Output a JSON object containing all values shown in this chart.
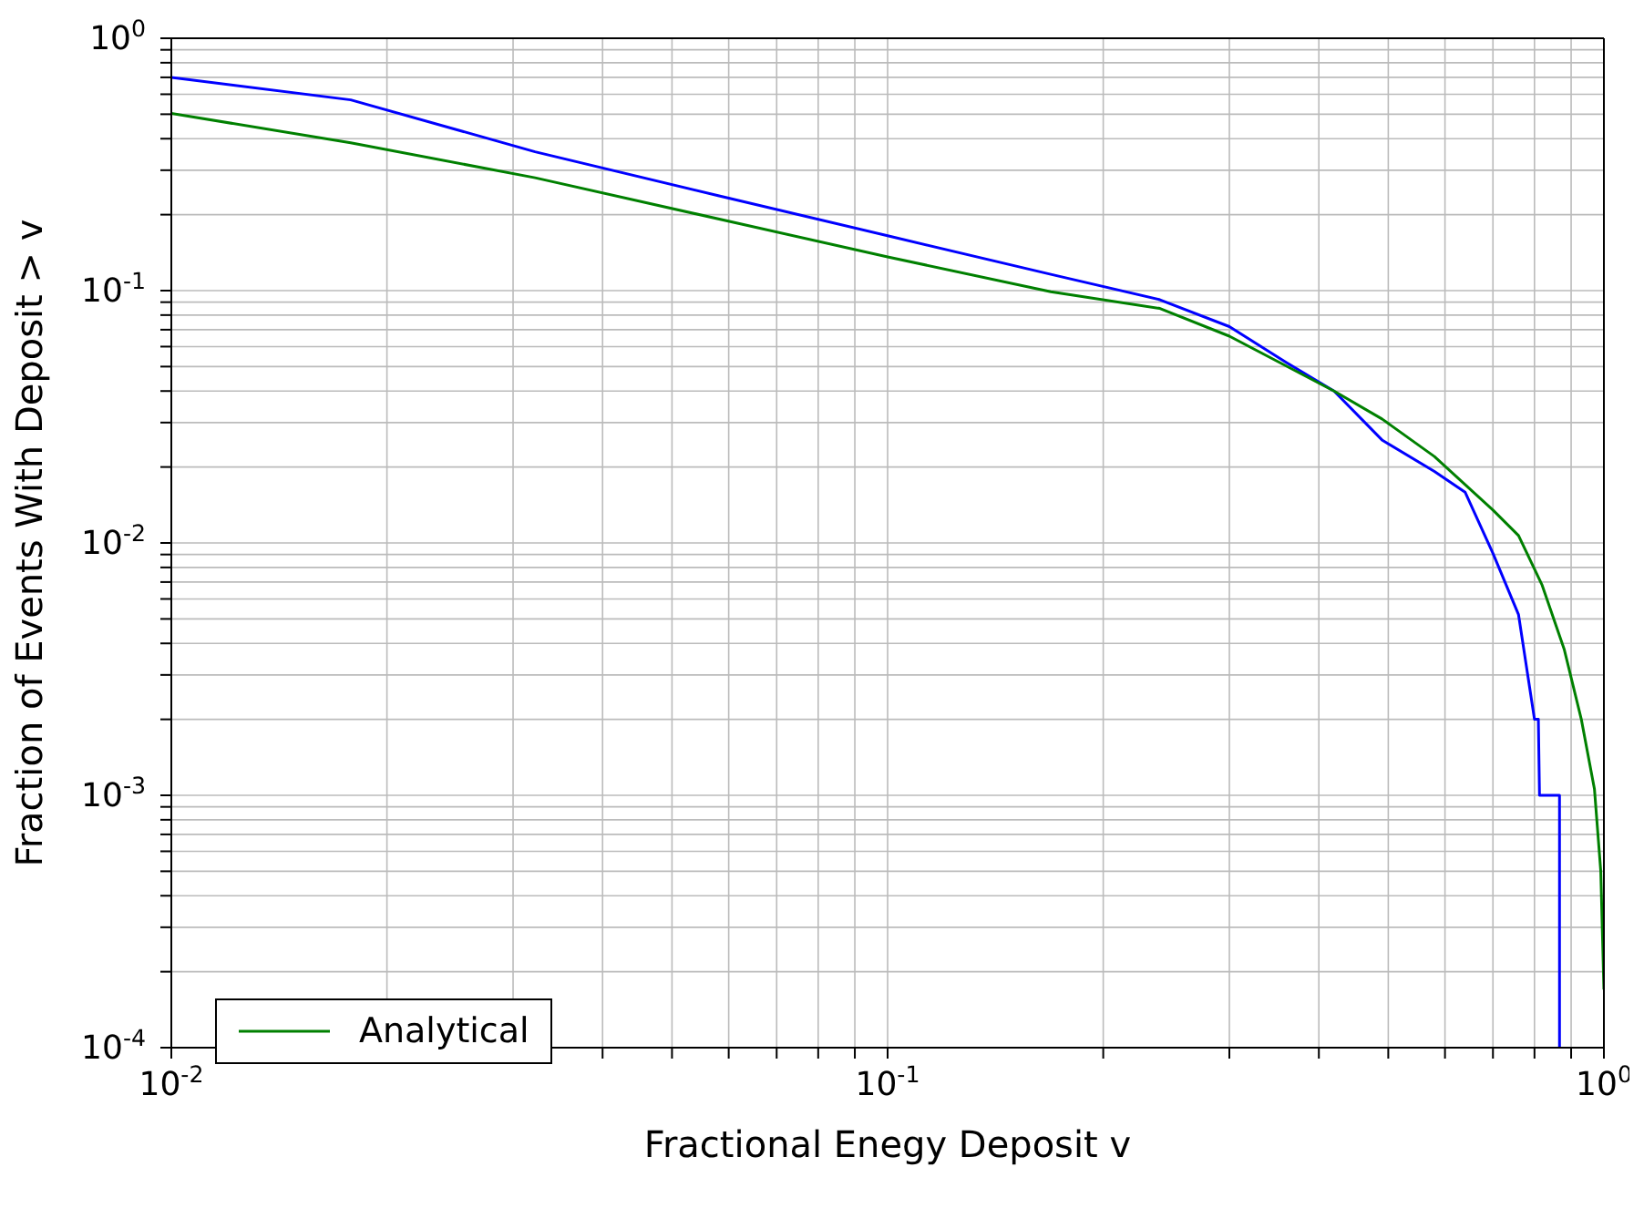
{
  "chart_data": {
    "type": "line",
    "xlabel": "Fractional Enegy Deposit v",
    "ylabel": "Fraction of Events With Deposit > v",
    "log": "xy",
    "grid": true,
    "legend": "bottom left",
    "marker": "none",
    "line_style": "solid",
    "xlim": [
      0.01,
      1
    ],
    "ylim": [
      0.0001,
      1
    ],
    "xticks": [
      {
        "value": 0.01,
        "label": "10$^{-2}$"
      },
      {
        "value": 0.02,
        "label": null
      },
      {
        "value": 0.03,
        "label": null
      },
      {
        "value": 0.04,
        "label": null
      },
      {
        "value": 0.05,
        "label": null
      },
      {
        "value": 0.06,
        "label": null
      },
      {
        "value": 0.07,
        "label": null
      },
      {
        "value": 0.08,
        "label": null
      },
      {
        "value": 0.09,
        "label": null
      },
      {
        "value": 0.1,
        "label": "10$^{-1}$"
      },
      {
        "value": 0.2,
        "label": null
      },
      {
        "value": 0.3,
        "label": null
      },
      {
        "value": 0.4,
        "label": null
      },
      {
        "value": 0.5,
        "label": null
      },
      {
        "value": 0.6,
        "label": null
      },
      {
        "value": 0.7,
        "label": null
      },
      {
        "value": 0.8,
        "label": null
      },
      {
        "value": 0.9,
        "label": null
      },
      {
        "value": 1,
        "label": "10$^{0}$"
      }
    ],
    "yticks": [
      {
        "value": 0.0001,
        "label": "10$^{-4}$"
      },
      {
        "value": 0.0002,
        "label": null
      },
      {
        "value": 0.0003,
        "label": null
      },
      {
        "value": 0.0004,
        "label": null
      },
      {
        "value": 0.0005,
        "label": null
      },
      {
        "value": 0.0006,
        "label": null
      },
      {
        "value": 0.0007,
        "label": null
      },
      {
        "value": 0.0008,
        "label": null
      },
      {
        "value": 0.0009,
        "label": null
      },
      {
        "value": 0.001,
        "label": "10$^{-3}$"
      },
      {
        "value": 0.002,
        "label": null
      },
      {
        "value": 0.003,
        "label": null
      },
      {
        "value": 0.004,
        "label": null
      },
      {
        "value": 0.005,
        "label": null
      },
      {
        "value": 0.006,
        "label": null
      },
      {
        "value": 0.007,
        "label": null
      },
      {
        "value": 0.008,
        "label": null
      },
      {
        "value": 0.009,
        "label": null
      },
      {
        "value": 0.01,
        "label": "10$^{-2}$"
      },
      {
        "value": 0.02,
        "label": null
      },
      {
        "value": 0.03,
        "label": null
      },
      {
        "value": 0.04,
        "label": null
      },
      {
        "value": 0.05,
        "label": null
      },
      {
        "value": 0.06,
        "label": null
      },
      {
        "value": 0.07,
        "label": null
      },
      {
        "value": 0.08,
        "label": null
      },
      {
        "value": 0.09,
        "label": null
      },
      {
        "value": 0.1,
        "label": "10$^{-1}$"
      },
      {
        "value": 0.2,
        "label": null
      },
      {
        "value": 0.3,
        "label": null
      },
      {
        "value": 0.4,
        "label": null
      },
      {
        "value": 0.5,
        "label": null
      },
      {
        "value": 0.6,
        "label": null
      },
      {
        "value": 0.7,
        "label": null
      },
      {
        "value": 0.8,
        "label": null
      },
      {
        "value": 0.9,
        "label": null
      },
      {
        "value": 1,
        "label": "10$^{0}$"
      }
    ],
    "series": [
      {
        "color": "#0000ff",
        "x": [
          0.01,
          0.0178,
          0.0322,
          0.058,
          0.1,
          0.169,
          0.24,
          0.3,
          0.36,
          0.42,
          0.49,
          0.58,
          0.64,
          0.7,
          0.76,
          0.8,
          0.81,
          0.813,
          0.867,
          0.867
        ],
        "values": [
          0.7,
          0.57,
          0.355,
          0.238,
          0.165,
          0.116,
          0.092,
          0.072,
          0.052,
          0.04,
          0.0256,
          0.0192,
          0.0159,
          0.0091,
          0.0052,
          0.002,
          0.002,
          0.001,
          0.001,
          0.0001
        ]
      },
      {
        "name": "Analytical",
        "color": "#008000",
        "x": [
          0.01,
          0.0178,
          0.0322,
          0.1,
          0.169,
          0.24,
          0.3,
          0.42,
          0.49,
          0.58,
          0.7,
          0.76,
          0.82,
          0.88,
          0.93,
          0.97,
          0.99,
          1
        ],
        "values": [
          0.504,
          0.385,
          0.28,
          0.136,
          0.099,
          0.085,
          0.066,
          0.04,
          0.031,
          0.022,
          0.0135,
          0.0107,
          0.0068,
          0.0038,
          0.002,
          0.00106,
          0.0005,
          0.00017
        ]
      }
    ]
  }
}
